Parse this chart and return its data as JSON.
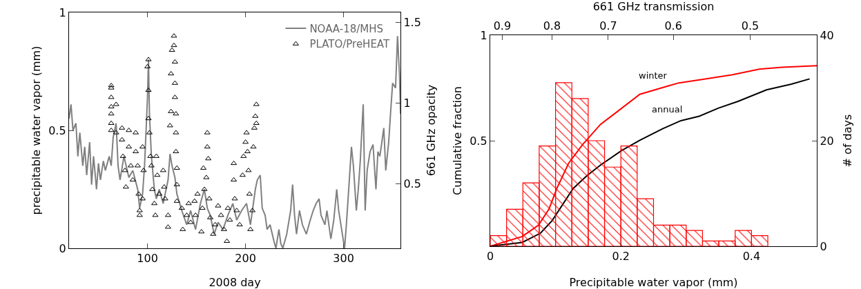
{
  "chart_data": [
    {
      "type": "line",
      "xlabel": "2008 day",
      "ylabel": "precipitable water vapor (mm)",
      "y2label": "661 GHz opacity",
      "xlim": [
        20,
        358
      ],
      "xticks": [
        100,
        200,
        300
      ],
      "ylim": [
        0,
        1
      ],
      "yticks": [
        0,
        0.5,
        1
      ],
      "y2lim": [
        0.1,
        1.56
      ],
      "y2ticks": [
        0.5,
        1,
        1.5
      ],
      "grid": false,
      "legend": "top right",
      "series": [
        {
          "name": "NOAA-18/MHS",
          "color": "#808080",
          "marker": "none",
          "x": [
            20,
            22,
            24,
            27,
            29,
            31,
            34,
            36,
            38,
            41,
            43,
            45,
            48,
            50,
            52,
            55,
            57,
            61,
            63,
            65,
            68,
            70,
            72,
            76,
            81,
            85,
            90,
            92,
            95,
            97,
            100,
            101,
            102,
            104,
            107,
            109,
            112,
            116,
            121,
            123,
            125,
            128,
            130,
            135,
            140,
            144,
            149,
            154,
            158,
            161,
            164,
            168,
            172,
            177,
            182,
            187,
            191,
            196,
            201,
            205,
            210,
            212,
            215,
            217,
            220,
            222,
            225,
            229,
            231,
            234,
            236,
            238,
            242,
            246,
            248,
            250,
            252,
            255,
            258,
            262,
            266,
            269,
            272,
            275,
            277,
            281,
            283,
            287,
            290,
            293,
            295,
            298,
            301,
            303,
            306,
            308,
            310,
            313,
            315,
            317,
            320,
            322,
            324,
            327,
            330,
            333,
            335,
            337,
            341,
            343,
            346,
            348,
            350,
            353,
            355,
            357,
            358
          ],
          "values": [
            0.55,
            0.61,
            0.5,
            0.53,
            0.39,
            0.49,
            0.35,
            0.43,
            0.31,
            0.45,
            0.27,
            0.39,
            0.25,
            0.36,
            0.29,
            0.37,
            0.33,
            0.39,
            0.35,
            0.47,
            0.53,
            0.35,
            0.29,
            0.39,
            0.3,
            0.33,
            0.25,
            0.17,
            0.23,
            0.35,
            0.64,
            0.8,
            0.57,
            0.39,
            0.25,
            0.21,
            0.25,
            0.19,
            0.29,
            0.4,
            0.35,
            0.3,
            0.23,
            0.16,
            0.1,
            0.16,
            0.08,
            0.19,
            0.25,
            0.17,
            0.14,
            0.06,
            0.11,
            0.08,
            0.14,
            0.19,
            0.12,
            0.16,
            0.19,
            0.1,
            0.25,
            0.29,
            0.31,
            0.17,
            0.14,
            0.08,
            0.1,
            0.03,
            0.0,
            0.08,
            0.02,
            0.0,
            0.06,
            0.16,
            0.27,
            0.14,
            0.06,
            0.16,
            0.1,
            0.06,
            0.12,
            0.16,
            0.19,
            0.21,
            0.14,
            0.1,
            0.16,
            0.04,
            0.12,
            0.25,
            0.16,
            0.08,
            0.0,
            0.11,
            0.3,
            0.43,
            0.35,
            0.16,
            0.25,
            0.37,
            0.61,
            0.16,
            0.33,
            0.41,
            0.44,
            0.25,
            0.41,
            0.39,
            0.51,
            0.33,
            0.45,
            0.58,
            0.7,
            0.68,
            0.9,
            0.74,
            0.57
          ]
        },
        {
          "name": "PLATO/PreHEAT",
          "type": "scatter",
          "color": "#000000",
          "marker": "triangle",
          "x": [
            63,
            63,
            63,
            63,
            63,
            63,
            63,
            68,
            68,
            74,
            74,
            75,
            77,
            78,
            81,
            81,
            83,
            85,
            88,
            88,
            90,
            91,
            92,
            92,
            95,
            96,
            95,
            100,
            101,
            101,
            101,
            102,
            103,
            104,
            105,
            107,
            108,
            109,
            110,
            112,
            116,
            117,
            118,
            121,
            121,
            123,
            124,
            124,
            125,
            127,
            127,
            128,
            128,
            128,
            129,
            129,
            129,
            130,
            130,
            130,
            135,
            136,
            140,
            142,
            144,
            148,
            149,
            151,
            155,
            156,
            157,
            158,
            160,
            161,
            161,
            162,
            163,
            164,
            167,
            169,
            172,
            175,
            178,
            181,
            182,
            184,
            188,
            188,
            189,
            191,
            194,
            197,
            198,
            200,
            201,
            202,
            203,
            204,
            205,
            207,
            208,
            209,
            210,
            211,
            211
          ],
          "values": [
            0.69,
            0.68,
            0.64,
            0.6,
            0.57,
            0.53,
            0.5,
            0.61,
            0.49,
            0.51,
            0.46,
            0.39,
            0.33,
            0.26,
            0.5,
            0.43,
            0.35,
            0.29,
            0.49,
            0.41,
            0.35,
            0.23,
            0.16,
            0.14,
            0.43,
            0.33,
            0.21,
            0.77,
            0.8,
            0.67,
            0.55,
            0.49,
            0.39,
            0.35,
            0.25,
            0.19,
            0.14,
            0.39,
            0.31,
            0.23,
            0.33,
            0.26,
            0.21,
            0.14,
            0.09,
            0.52,
            0.58,
            0.74,
            0.84,
            0.9,
            0.86,
            0.79,
            0.7,
            0.64,
            0.57,
            0.49,
            0.41,
            0.34,
            0.27,
            0.2,
            0.17,
            0.08,
            0.14,
            0.19,
            0.11,
            0.2,
            0.14,
            0.23,
            0.07,
            0.17,
            0.34,
            0.25,
            0.3,
            0.49,
            0.43,
            0.38,
            0.21,
            0.13,
            0.06,
            0.1,
            0.18,
            0.14,
            0.08,
            0.03,
            0.17,
            0.12,
            0.36,
            0.29,
            0.21,
            0.16,
            0.1,
            0.31,
            0.39,
            0.45,
            0.49,
            0.41,
            0.33,
            0.23,
            0.08,
            0.16,
            0.43,
            0.51,
            0.56,
            0.61,
            0.53
          ]
        }
      ]
    },
    {
      "type": "histogram",
      "xlabel": "Precipitable water vapor (mm)",
      "ylabel": "Cumulative fraction",
      "y2label": "# of days",
      "x2label": "661 GHz transmission",
      "xlim": [
        0,
        0.5
      ],
      "xticks": [
        0,
        0.2,
        0.4
      ],
      "ylim": [
        0,
        1
      ],
      "yticks": [
        0.5,
        1
      ],
      "y2lim": [
        0,
        40
      ],
      "y2ticks": [
        0,
        20,
        40
      ],
      "x2lim": [
        0.926,
        0.427
      ],
      "x2ticks": [
        0.9,
        0.8,
        0.7,
        0.6,
        0.5
      ],
      "log": "x2",
      "grid": false,
      "series": [
        {
          "axis": "y2",
          "color": "#ff0000",
          "bins": [
            0,
            0.025,
            0.05,
            0.075,
            0.1,
            0.125,
            0.15,
            0.175,
            0.2,
            0.225,
            0.25,
            0.275,
            0.3,
            0.325,
            0.35,
            0.375,
            0.4,
            0.425
          ],
          "values": [
            2,
            7,
            12,
            19,
            31,
            28,
            20,
            15,
            19,
            9,
            4,
            4,
            3,
            1,
            1,
            3,
            2
          ]
        },
        {
          "name": "winter",
          "type": "line",
          "color": "#ff0000",
          "x": [
            0,
            0.049,
            0.074,
            0.09,
            0.102,
            0.12,
            0.141,
            0.169,
            0.19,
            0.229,
            0.271,
            0.289,
            0.324,
            0.37,
            0.412,
            0.447,
            0.5
          ],
          "values": [
            0,
            0.046,
            0.1,
            0.176,
            0.274,
            0.393,
            0.48,
            0.578,
            0.627,
            0.72,
            0.758,
            0.774,
            0.79,
            0.812,
            0.839,
            0.848,
            0.855
          ]
        },
        {
          "name": "annual",
          "type": "line",
          "color": "#000000",
          "x": [
            0,
            0.049,
            0.077,
            0.095,
            0.127,
            0.148,
            0.169,
            0.201,
            0.229,
            0.264,
            0.292,
            0.32,
            0.349,
            0.38,
            0.423,
            0.461,
            0.489
          ],
          "values": [
            0,
            0.018,
            0.062,
            0.122,
            0.274,
            0.334,
            0.385,
            0.453,
            0.502,
            0.557,
            0.595,
            0.616,
            0.654,
            0.687,
            0.741,
            0.768,
            0.793
          ]
        }
      ]
    }
  ]
}
